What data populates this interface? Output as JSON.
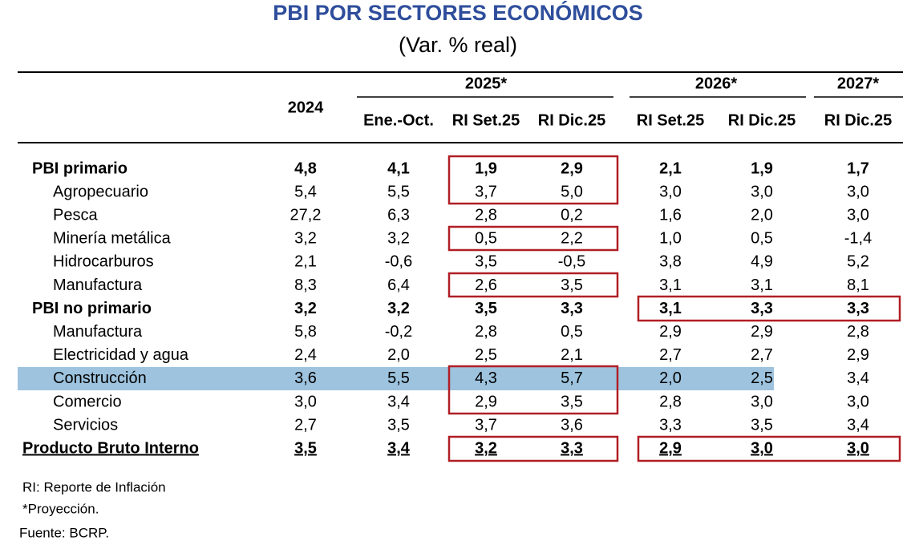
{
  "header": {
    "title": "PBI POR SECTORES ECONÓMICOS",
    "subtitle": "(Var. % real)"
  },
  "table": {
    "year_col": "2024",
    "groups": [
      "2025*",
      "2026*",
      "2027*"
    ],
    "columns": [
      "Ene.-Oct.",
      "RI Set.25",
      "RI Dic.25",
      "RI Set.25",
      "RI Dic.25",
      "RI Dic.25"
    ],
    "rows": [
      [
        "PBI primario",
        "4,8",
        "4,1",
        "1,9",
        "2,9",
        "2,1",
        "1,9",
        "1,7"
      ],
      [
        "Agropecuario",
        "5,4",
        "5,5",
        "3,7",
        "5,0",
        "3,0",
        "3,0",
        "3,0"
      ],
      [
        "Pesca",
        "27,2",
        "6,3",
        "2,8",
        "0,2",
        "1,6",
        "2,0",
        "3,0"
      ],
      [
        "Minería metálica",
        "3,2",
        "3,2",
        "0,5",
        "2,2",
        "1,0",
        "0,5",
        "-1,4"
      ],
      [
        "Hidrocarburos",
        "2,1",
        "-0,6",
        "3,5",
        "-0,5",
        "3,8",
        "4,9",
        "5,2"
      ],
      [
        "Manufactura",
        "8,3",
        "6,4",
        "2,6",
        "3,5",
        "3,1",
        "3,1",
        "8,1"
      ],
      [
        "PBI no primario",
        "3,2",
        "3,2",
        "3,5",
        "3,3",
        "3,1",
        "3,3",
        "3,3"
      ],
      [
        "Manufactura",
        "5,8",
        "-0,2",
        "2,8",
        "0,5",
        "2,9",
        "2,9",
        "2,8"
      ],
      [
        "Electricidad y agua",
        "2,4",
        "2,0",
        "2,5",
        "2,1",
        "2,7",
        "2,7",
        "2,9"
      ],
      [
        "Construcción",
        "3,6",
        "5,5",
        "4,3",
        "5,7",
        "2,0",
        "2,5",
        "3,4"
      ],
      [
        "Comercio",
        "3,0",
        "3,4",
        "2,9",
        "3,5",
        "2,8",
        "3,0",
        "3,0"
      ],
      [
        "Servicios",
        "2,7",
        "3,5",
        "3,7",
        "3,6",
        "3,3",
        "3,5",
        "3,4"
      ],
      [
        "Producto Bruto Interno",
        "3,5",
        "3,4",
        "3,2",
        "3,3",
        "2,9",
        "3,0",
        "3,0"
      ]
    ]
  },
  "notes": [
    "RI: Reporte de Inflación",
    "*Proyección.",
    "Fuente: BCRP."
  ]
}
